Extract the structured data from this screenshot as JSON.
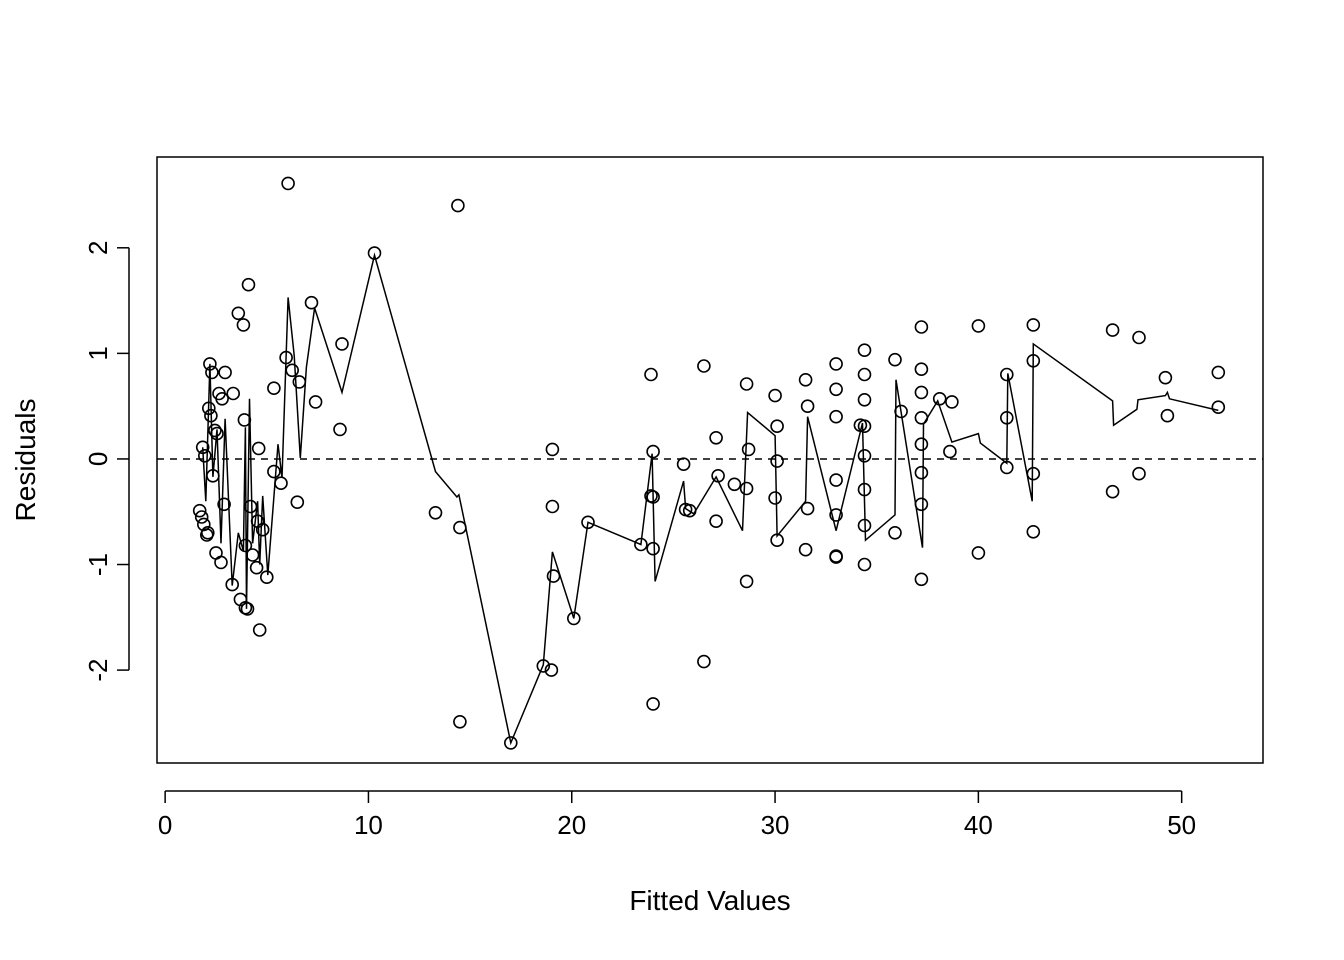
{
  "chart_data": {
    "type": "scatter",
    "title": "",
    "xlabel": "Fitted Values",
    "ylabel": "Residuals",
    "xlim": [
      -0.4,
      54.0
    ],
    "ylim": [
      -2.88,
      2.86
    ],
    "x_ticks": [
      0,
      10,
      20,
      30,
      40,
      50
    ],
    "x_tick_labels": [
      "0",
      "10",
      "20",
      "30",
      "40",
      "50"
    ],
    "y_ticks": [
      -2,
      -1,
      0,
      1,
      2
    ],
    "y_tick_labels": [
      "-2",
      "-1",
      "0",
      "1",
      "2"
    ],
    "reference_line": {
      "y": 0,
      "style": "dashed"
    },
    "grid": false,
    "legend": "none",
    "colors": {
      "points": "#000000",
      "lines": "#000000",
      "background": "#ffffff"
    },
    "points": [
      [
        1.7,
        -0.49
      ],
      [
        1.8,
        -0.55
      ],
      [
        1.85,
        0.11
      ],
      [
        1.9,
        -0.62
      ],
      [
        1.95,
        0.03
      ],
      [
        2.05,
        -0.72
      ],
      [
        2.1,
        -0.7
      ],
      [
        2.15,
        0.48
      ],
      [
        2.2,
        0.9
      ],
      [
        2.25,
        0.41
      ],
      [
        2.3,
        0.82
      ],
      [
        2.35,
        -0.16
      ],
      [
        2.45,
        0.27
      ],
      [
        2.5,
        -0.89
      ],
      [
        2.55,
        0.24
      ],
      [
        2.65,
        0.62
      ],
      [
        2.75,
        -0.98
      ],
      [
        2.8,
        0.57
      ],
      [
        2.9,
        -0.43
      ],
      [
        2.95,
        0.82
      ],
      [
        3.3,
        -1.19
      ],
      [
        3.35,
        0.62
      ],
      [
        3.6,
        1.38
      ],
      [
        3.7,
        -1.33
      ],
      [
        3.85,
        1.27
      ],
      [
        3.9,
        0.37
      ],
      [
        3.95,
        -1.41
      ],
      [
        3.95,
        -0.82
      ],
      [
        4.05,
        -1.42
      ],
      [
        4.1,
        1.65
      ],
      [
        4.2,
        -0.45
      ],
      [
        4.3,
        -0.91
      ],
      [
        4.5,
        -1.03
      ],
      [
        4.55,
        -0.59
      ],
      [
        4.6,
        0.1
      ],
      [
        4.65,
        -1.62
      ],
      [
        4.8,
        -0.67
      ],
      [
        5.0,
        -1.12
      ],
      [
        5.35,
        -0.12
      ],
      [
        5.35,
        0.67
      ],
      [
        5.7,
        -0.23
      ],
      [
        5.95,
        0.96
      ],
      [
        6.05,
        2.61
      ],
      [
        6.25,
        0.84
      ],
      [
        6.5,
        -0.41
      ],
      [
        6.6,
        0.73
      ],
      [
        7.2,
        1.48
      ],
      [
        7.4,
        0.54
      ],
      [
        8.6,
        0.28
      ],
      [
        8.7,
        1.09
      ],
      [
        10.3,
        1.95
      ],
      [
        13.3,
        -0.51
      ],
      [
        14.4,
        2.4
      ],
      [
        14.5,
        -0.65
      ],
      [
        14.5,
        -2.49
      ],
      [
        17.0,
        -2.69
      ],
      [
        18.6,
        -1.96
      ],
      [
        19.0,
        -2.0
      ],
      [
        19.05,
        0.09
      ],
      [
        19.05,
        -0.45
      ],
      [
        19.1,
        -1.11
      ],
      [
        20.1,
        -1.51
      ],
      [
        20.8,
        -0.6
      ],
      [
        23.4,
        -0.81
      ],
      [
        23.9,
        0.8
      ],
      [
        23.9,
        -0.35
      ],
      [
        24.0,
        -0.36
      ],
      [
        24.0,
        -0.85
      ],
      [
        24.0,
        0.07
      ],
      [
        24.0,
        -2.32
      ],
      [
        25.5,
        -0.05
      ],
      [
        25.6,
        -0.48
      ],
      [
        25.8,
        -0.49
      ],
      [
        26.5,
        0.88
      ],
      [
        26.5,
        -1.92
      ],
      [
        27.1,
        0.2
      ],
      [
        27.1,
        -0.59
      ],
      [
        27.2,
        -0.16
      ],
      [
        28.0,
        -0.24
      ],
      [
        28.6,
        -0.28
      ],
      [
        28.6,
        0.71
      ],
      [
        28.6,
        -1.16
      ],
      [
        28.7,
        0.09
      ],
      [
        30.0,
        0.6
      ],
      [
        30.0,
        -0.37
      ],
      [
        30.1,
        -0.77
      ],
      [
        30.1,
        -0.02
      ],
      [
        30.1,
        0.31
      ],
      [
        31.5,
        0.75
      ],
      [
        31.5,
        -0.86
      ],
      [
        31.6,
        -0.47
      ],
      [
        31.6,
        0.5
      ],
      [
        33.0,
        0.9
      ],
      [
        33.0,
        -0.53
      ],
      [
        33.0,
        0.66
      ],
      [
        33.0,
        0.4
      ],
      [
        33.0,
        -0.2
      ],
      [
        33.0,
        -0.93
      ],
      [
        33.0,
        -0.92
      ],
      [
        34.2,
        0.32
      ],
      [
        34.4,
        -1.0
      ],
      [
        34.4,
        0.03
      ],
      [
        34.4,
        0.31
      ],
      [
        34.4,
        0.56
      ],
      [
        34.4,
        0.8
      ],
      [
        34.4,
        -0.63
      ],
      [
        34.4,
        -0.29
      ],
      [
        34.4,
        1.03
      ],
      [
        35.9,
        0.94
      ],
      [
        35.9,
        -0.7
      ],
      [
        36.2,
        0.45
      ],
      [
        37.2,
        1.25
      ],
      [
        37.2,
        0.85
      ],
      [
        37.2,
        0.63
      ],
      [
        37.2,
        0.39
      ],
      [
        37.2,
        0.14
      ],
      [
        37.2,
        -0.13
      ],
      [
        37.2,
        -0.43
      ],
      [
        37.2,
        -1.14
      ],
      [
        38.1,
        0.57
      ],
      [
        38.6,
        0.07
      ],
      [
        38.7,
        0.54
      ],
      [
        40.0,
        1.26
      ],
      [
        40.0,
        -0.89
      ],
      [
        41.4,
        0.39
      ],
      [
        41.4,
        -0.08
      ],
      [
        41.4,
        0.8
      ],
      [
        42.7,
        1.27
      ],
      [
        42.7,
        0.93
      ],
      [
        42.7,
        -0.14
      ],
      [
        42.7,
        -0.69
      ],
      [
        46.6,
        1.22
      ],
      [
        46.6,
        -0.31
      ],
      [
        47.9,
        1.15
      ],
      [
        47.9,
        -0.14
      ],
      [
        49.2,
        0.77
      ],
      [
        49.3,
        0.41
      ],
      [
        51.8,
        0.82
      ],
      [
        51.8,
        0.49
      ]
    ],
    "smooth_line": [
      [
        1.85,
        0.11
      ],
      [
        2.0,
        -0.4
      ],
      [
        2.2,
        0.9
      ],
      [
        2.35,
        -0.17
      ],
      [
        2.55,
        0.28
      ],
      [
        2.75,
        -0.8
      ],
      [
        2.95,
        0.38
      ],
      [
        3.3,
        -1.2
      ],
      [
        3.6,
        -0.7
      ],
      [
        3.85,
        -0.87
      ],
      [
        3.95,
        0.3
      ],
      [
        4.0,
        -1.42
      ],
      [
        4.15,
        0.57
      ],
      [
        4.3,
        -0.8
      ],
      [
        4.55,
        -0.4
      ],
      [
        4.65,
        -1.0
      ],
      [
        4.8,
        -0.35
      ],
      [
        5.05,
        -1.1
      ],
      [
        5.55,
        0.14
      ],
      [
        5.75,
        -0.18
      ],
      [
        6.05,
        1.53
      ],
      [
        6.35,
        0.98
      ],
      [
        6.65,
        0.01
      ],
      [
        6.95,
        0.87
      ],
      [
        7.35,
        1.43
      ],
      [
        8.7,
        0.63
      ],
      [
        10.3,
        1.93
      ],
      [
        13.3,
        -0.12
      ],
      [
        14.35,
        -0.36
      ],
      [
        14.45,
        -0.34
      ],
      [
        17.0,
        -2.69
      ],
      [
        18.6,
        -1.95
      ],
      [
        19.05,
        -0.88
      ],
      [
        20.1,
        -1.51
      ],
      [
        20.8,
        -0.6
      ],
      [
        23.4,
        -0.81
      ],
      [
        23.95,
        0.05
      ],
      [
        24.1,
        -1.16
      ],
      [
        25.5,
        -0.21
      ],
      [
        25.6,
        -0.47
      ],
      [
        26.0,
        -0.52
      ],
      [
        27.1,
        -0.17
      ],
      [
        28.4,
        -0.68
      ],
      [
        28.65,
        0.44
      ],
      [
        30.0,
        0.22
      ],
      [
        30.1,
        -0.73
      ],
      [
        31.5,
        -0.4
      ],
      [
        31.6,
        0.4
      ],
      [
        33.0,
        -0.68
      ],
      [
        34.3,
        0.34
      ],
      [
        34.45,
        -0.77
      ],
      [
        35.9,
        -0.53
      ],
      [
        35.95,
        0.75
      ],
      [
        37.25,
        -0.84
      ],
      [
        37.3,
        0.33
      ],
      [
        38.0,
        0.55
      ],
      [
        38.7,
        0.16
      ],
      [
        40.0,
        0.24
      ],
      [
        40.1,
        0.15
      ],
      [
        41.4,
        -0.04
      ],
      [
        41.45,
        0.81
      ],
      [
        42.65,
        -0.4
      ],
      [
        42.7,
        1.09
      ],
      [
        46.6,
        0.55
      ],
      [
        46.65,
        0.32
      ],
      [
        47.8,
        0.47
      ],
      [
        47.85,
        0.56
      ],
      [
        49.2,
        0.6
      ],
      [
        49.3,
        0.63
      ],
      [
        49.4,
        0.57
      ],
      [
        51.8,
        0.46
      ]
    ]
  }
}
